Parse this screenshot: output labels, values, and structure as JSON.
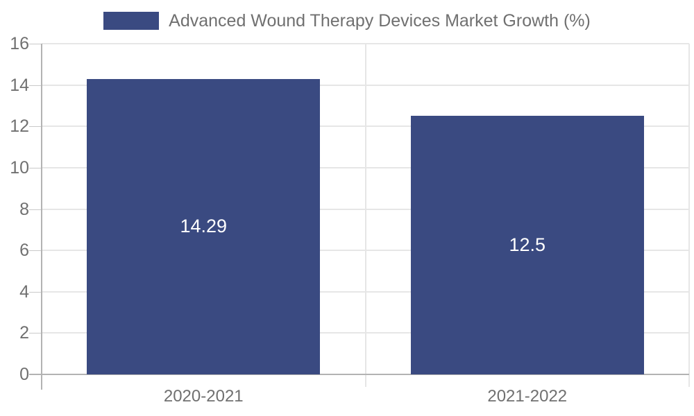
{
  "chart_data": {
    "type": "bar",
    "title": "",
    "categories": [
      "2020-2021",
      "2021-2022"
    ],
    "series": [
      {
        "name": "Advanced Wound Therapy Devices Market Growth (%)",
        "values": [
          14.29,
          12.5
        ]
      }
    ],
    "value_labels": [
      "14.29",
      "12.5"
    ],
    "ylim": [
      0,
      16
    ],
    "yticks": [
      0,
      2,
      4,
      6,
      8,
      10,
      12,
      14,
      16
    ],
    "xlabel": "",
    "ylabel": "",
    "grid": true,
    "legend_position": "top",
    "colors": {
      "bar": "#3A4A81",
      "bar_value_text": "#FFFFFF",
      "grid_line": "#E6E6E6",
      "axis_line": "#B3B3B3",
      "tick_mark": "#C9C9C9",
      "tick_text": "#707070",
      "legend_text": "#707070",
      "background": "#FFFFFF"
    }
  }
}
